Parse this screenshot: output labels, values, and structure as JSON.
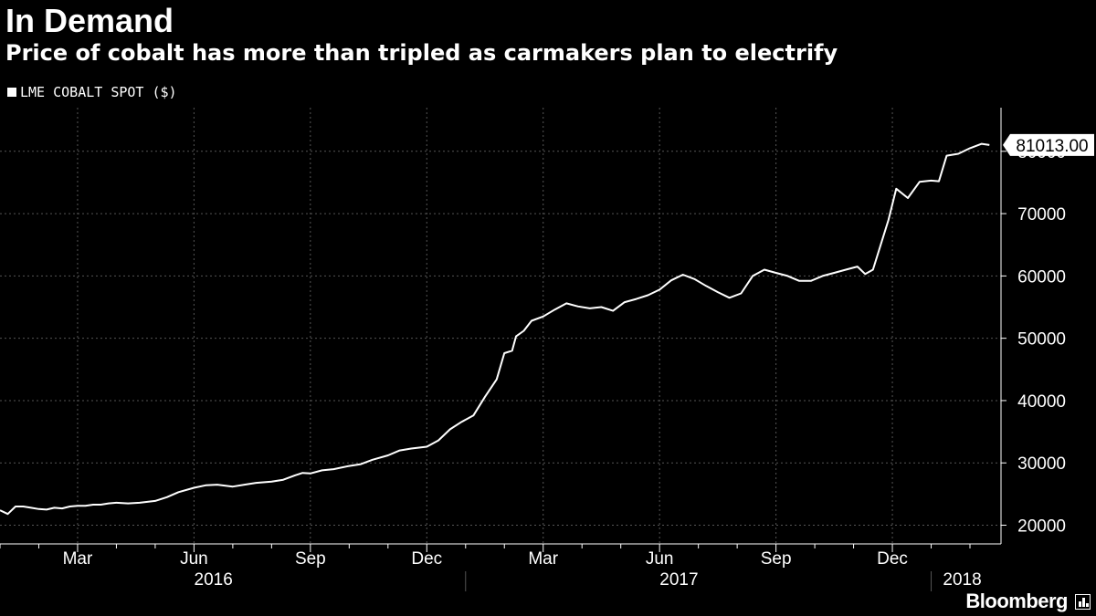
{
  "header": {
    "title": "In Demand",
    "subtitle": "Price of cobalt has more than tripled as carmakers plan to electrify"
  },
  "footer": {
    "brand": "Bloomberg"
  },
  "colors": {
    "background": "#000000",
    "line": "#ffffff",
    "grid": "#555555",
    "text": "#ffffff"
  },
  "chart_data": {
    "type": "line",
    "title": "In Demand",
    "subtitle": "Price of cobalt has more than tripled as carmakers plan to electrify",
    "legend": [
      {
        "name": "LME COBALT SPOT ($)",
        "color": "#ffffff"
      }
    ],
    "xlabel": "",
    "ylabel": "",
    "ylim": [
      17000,
      87000
    ],
    "yticks": [
      20000,
      30000,
      40000,
      50000,
      60000,
      70000,
      80000
    ],
    "ytick_labels": [
      "20000",
      "30000",
      "40000",
      "50000",
      "60000",
      "70000",
      "80000"
    ],
    "xlim_months": [
      1.0,
      26.8
    ],
    "month_ticks": [
      {
        "pos": 3,
        "label": "Mar"
      },
      {
        "pos": 6,
        "label": "Jun"
      },
      {
        "pos": 9,
        "label": "Sep"
      },
      {
        "pos": 12,
        "label": "Dec"
      },
      {
        "pos": 15,
        "label": "Mar"
      },
      {
        "pos": 18,
        "label": "Jun"
      },
      {
        "pos": 21,
        "label": "Sep"
      },
      {
        "pos": 24,
        "label": "Dec"
      }
    ],
    "minor_ticks": [
      1,
      2,
      4,
      5,
      7,
      8,
      10,
      11,
      13,
      14,
      16,
      17,
      19,
      20,
      22,
      23,
      25,
      26
    ],
    "year_labels": [
      {
        "label": "2016",
        "center": 6.5
      },
      {
        "label": "2017",
        "center": 18.5
      },
      {
        "label": "2018",
        "center": 25.8
      }
    ],
    "year_separators": [
      13,
      25
    ],
    "last_value_label": "81013.00",
    "series": [
      {
        "name": "LME COBALT SPOT ($)",
        "x": [
          1.0,
          1.2,
          1.4,
          1.6,
          1.8,
          2.0,
          2.2,
          2.4,
          2.6,
          2.8,
          3.0,
          3.2,
          3.4,
          3.6,
          3.8,
          4.0,
          4.3,
          4.6,
          5.0,
          5.3,
          5.6,
          6.0,
          6.3,
          6.6,
          7.0,
          7.3,
          7.6,
          8.0,
          8.3,
          8.6,
          8.8,
          9.0,
          9.3,
          9.6,
          10.0,
          10.3,
          10.6,
          11.0,
          11.3,
          11.6,
          12.0,
          12.3,
          12.6,
          12.9,
          13.2,
          13.5,
          13.8,
          14.0,
          14.2,
          14.3,
          14.5,
          14.7,
          15.0,
          15.3,
          15.6,
          15.9,
          16.2,
          16.5,
          16.8,
          17.1,
          17.4,
          17.7,
          18.0,
          18.3,
          18.6,
          18.9,
          19.2,
          19.5,
          19.8,
          20.1,
          20.4,
          20.7,
          21.0,
          21.3,
          21.6,
          21.9,
          22.2,
          22.5,
          22.8,
          23.1,
          23.3,
          23.5,
          23.7,
          23.9,
          24.1,
          24.4,
          24.7,
          25.0,
          25.2,
          25.4,
          25.7,
          26.0,
          26.3,
          26.5
        ],
        "values": [
          22400,
          21800,
          23000,
          23000,
          22800,
          22600,
          22500,
          22800,
          22700,
          23000,
          23100,
          23100,
          23300,
          23300,
          23500,
          23600,
          23500,
          23600,
          23900,
          24500,
          25300,
          26000,
          26400,
          26500,
          26200,
          26500,
          26800,
          27000,
          27300,
          28000,
          28400,
          28300,
          28800,
          29000,
          29500,
          29800,
          30500,
          31200,
          32000,
          32300,
          32600,
          33600,
          35400,
          36600,
          37600,
          40600,
          43400,
          47600,
          48000,
          50300,
          51200,
          52800,
          53500,
          54600,
          55600,
          55100,
          54800,
          55000,
          54400,
          55800,
          56300,
          56900,
          57800,
          59300,
          60200,
          59500,
          58400,
          57400,
          56500,
          57200,
          60000,
          61000,
          60500,
          60000,
          59200,
          59200,
          60000,
          60500,
          61000,
          61500,
          60300,
          61000,
          65000,
          69000,
          74000,
          72500,
          75100,
          75300,
          75200,
          79300,
          79600,
          80500,
          81200,
          81013
        ]
      }
    ]
  }
}
